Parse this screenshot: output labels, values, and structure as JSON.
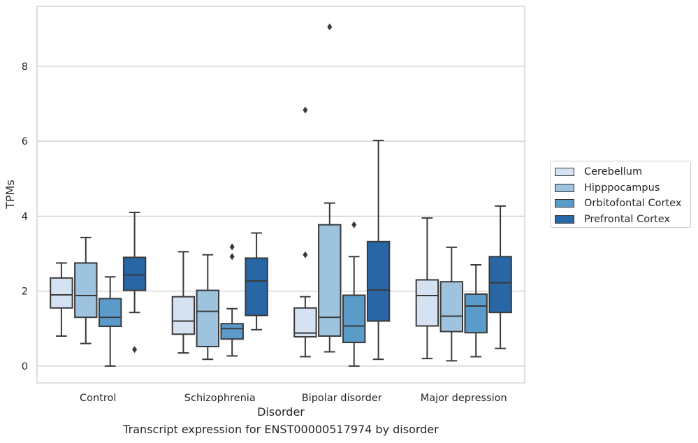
{
  "caption": "Transcript expression for ENST00000517974 by disorder",
  "chart_data": {
    "type": "box",
    "xlabel": "Disorder",
    "ylabel": "TPMs",
    "ylim": [
      -0.45,
      9.6
    ],
    "yticks": [
      0,
      2,
      4,
      6,
      8
    ],
    "grid": "horizontal",
    "legend_position": "right",
    "categories": [
      "Control",
      "Schizophrenia",
      "Bipolar disorder",
      "Major depression"
    ],
    "series": [
      {
        "name": "Cerebellum",
        "color": "#d4e2f1",
        "boxes": [
          {
            "whislo": 0.8,
            "q1": 1.55,
            "med": 1.9,
            "q3": 2.35,
            "whishi": 2.75,
            "fliers": []
          },
          {
            "whislo": 0.35,
            "q1": 0.85,
            "med": 1.2,
            "q3": 1.85,
            "whishi": 3.05,
            "fliers": []
          },
          {
            "whislo": 0.25,
            "q1": 0.78,
            "med": 0.88,
            "q3": 1.55,
            "whishi": 1.85,
            "fliers": [
              2.97,
              6.83
            ]
          },
          {
            "whislo": 0.2,
            "q1": 1.07,
            "med": 1.88,
            "q3": 2.3,
            "whishi": 3.95,
            "fliers": []
          }
        ]
      },
      {
        "name": "Hipppocampus",
        "color": "#9dc3de",
        "boxes": [
          {
            "whislo": 0.6,
            "q1": 1.3,
            "med": 1.88,
            "q3": 2.75,
            "whishi": 3.43,
            "fliers": []
          },
          {
            "whislo": 0.18,
            "q1": 0.52,
            "med": 1.46,
            "q3": 2.02,
            "whishi": 2.97,
            "fliers": []
          },
          {
            "whislo": 0.38,
            "q1": 0.8,
            "med": 1.3,
            "q3": 3.77,
            "whishi": 4.35,
            "fliers": [
              9.05
            ]
          },
          {
            "whislo": 0.14,
            "q1": 0.92,
            "med": 1.33,
            "q3": 2.25,
            "whishi": 3.17,
            "fliers": []
          }
        ]
      },
      {
        "name": "Orbitofontal Cortex",
        "color": "#5a9bc9",
        "boxes": [
          {
            "whislo": 0.0,
            "q1": 1.06,
            "med": 1.3,
            "q3": 1.8,
            "whishi": 2.38,
            "fliers": []
          },
          {
            "whislo": 0.27,
            "q1": 0.72,
            "med": 1.0,
            "q3": 1.13,
            "whishi": 1.53,
            "fliers": [
              2.92,
              3.18
            ]
          },
          {
            "whislo": 0.0,
            "q1": 0.63,
            "med": 1.07,
            "q3": 1.89,
            "whishi": 2.92,
            "fliers": [
              3.77
            ]
          },
          {
            "whislo": 0.25,
            "q1": 0.89,
            "med": 1.6,
            "q3": 1.92,
            "whishi": 2.7,
            "fliers": []
          }
        ]
      },
      {
        "name": "Prefrontal Cortex",
        "color": "#2866a6",
        "boxes": [
          {
            "whislo": 1.43,
            "q1": 2.02,
            "med": 2.43,
            "q3": 2.9,
            "whishi": 4.1,
            "fliers": [
              0.44
            ]
          },
          {
            "whislo": 0.97,
            "q1": 1.35,
            "med": 2.27,
            "q3": 2.88,
            "whishi": 3.55,
            "fliers": []
          },
          {
            "whislo": 0.18,
            "q1": 1.2,
            "med": 2.03,
            "q3": 3.32,
            "whishi": 6.02,
            "fliers": []
          },
          {
            "whislo": 0.47,
            "q1": 1.43,
            "med": 2.22,
            "q3": 2.92,
            "whishi": 4.27,
            "fliers": []
          }
        ]
      }
    ]
  }
}
